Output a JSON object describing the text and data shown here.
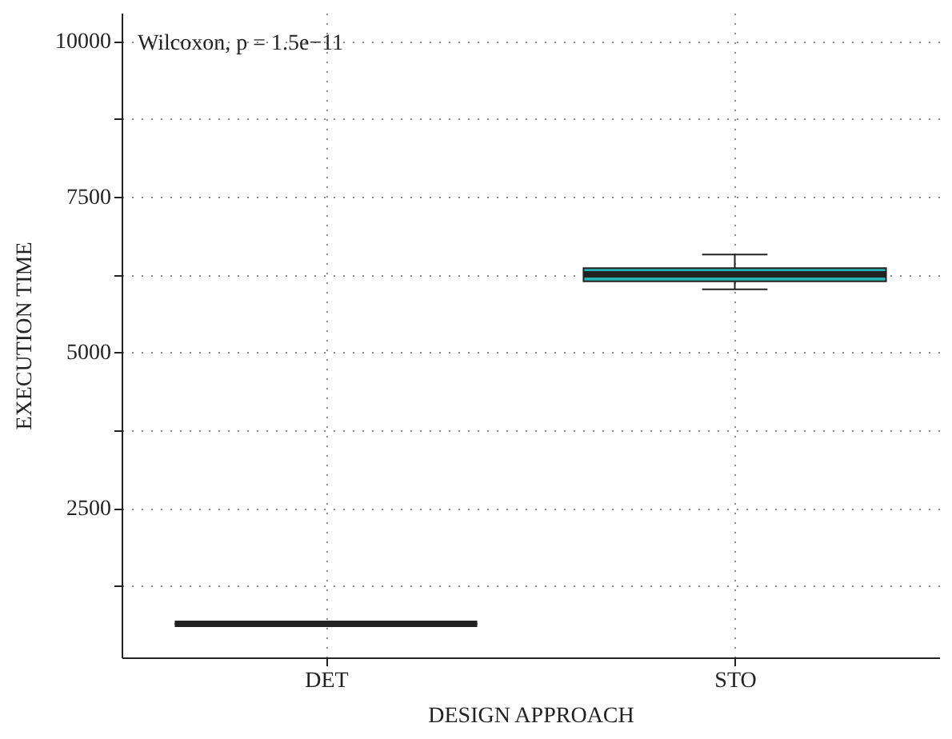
{
  "chart_data": {
    "type": "box",
    "categories": [
      "DET",
      "STO"
    ],
    "boxes": [
      {
        "low": 640,
        "q1": 640,
        "median": 640,
        "q3": 640,
        "high": 640
      },
      {
        "low": 6010,
        "q1": 6140,
        "median": 6250,
        "q3": 6350,
        "high": 6570
      }
    ],
    "colors": [
      "#222222",
      "#27b3b6"
    ],
    "xlabel": "DESIGN APPROACH",
    "ylabel": "EXECUTION TIME",
    "ylim": [
      100,
      10450
    ],
    "yticks": [
      {
        "value": 1250,
        "label": null
      },
      2500,
      {
        "value": 3750,
        "label": null
      },
      5000,
      {
        "value": 6250,
        "label": null
      },
      7500,
      {
        "value": 8750,
        "label": null
      },
      10000
    ],
    "grid": true,
    "annotations": [
      "Wilcoxon, p = 1.5e−11"
    ]
  }
}
